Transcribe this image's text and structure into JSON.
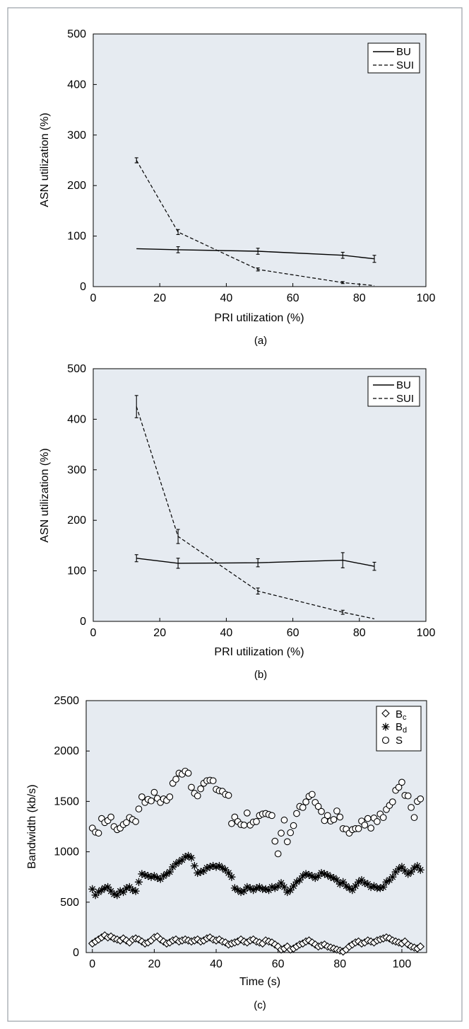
{
  "chart_data": [
    {
      "type": "line",
      "caption": "(a)",
      "xlabel": "PRI utilization (%)",
      "ylabel": "ASN utilization (%)",
      "xlim": [
        0,
        100
      ],
      "ylim": [
        0,
        500
      ],
      "xticks": [
        0,
        20,
        40,
        60,
        80,
        100
      ],
      "yticks": [
        0,
        100,
        200,
        300,
        400,
        500
      ],
      "grid": false,
      "legend": "top-right",
      "series": [
        {
          "name": "BU",
          "style": "solid",
          "x": [
            13,
            25.5,
            49.5,
            75,
            84.5
          ],
          "y": [
            75,
            73,
            70,
            62,
            55
          ],
          "err": [
            null,
            6,
            6,
            6,
            7
          ]
        },
        {
          "name": "SUI",
          "style": "dashed",
          "x": [
            13,
            25.5,
            49.5,
            75,
            84.5
          ],
          "y": [
            250,
            108,
            34,
            8,
            2
          ],
          "err": [
            5,
            5,
            3,
            2,
            null
          ]
        }
      ]
    },
    {
      "type": "line",
      "caption": "(b)",
      "xlabel": "PRI utilization (%)",
      "ylabel": "ASN utilization (%)",
      "xlim": [
        0,
        100
      ],
      "ylim": [
        0,
        500
      ],
      "xticks": [
        0,
        20,
        40,
        60,
        80,
        100
      ],
      "yticks": [
        0,
        100,
        200,
        300,
        400,
        500
      ],
      "grid": false,
      "legend": "top-right",
      "series": [
        {
          "name": "BU",
          "style": "solid",
          "x": [
            13,
            25.5,
            49.5,
            75,
            84.5
          ],
          "y": [
            125,
            115,
            116,
            121,
            109
          ],
          "err": [
            7,
            10,
            8,
            15,
            8
          ]
        },
        {
          "name": "SUI",
          "style": "dashed",
          "x": [
            13,
            25.5,
            49.5,
            75,
            84.5
          ],
          "y": [
            425,
            168,
            60,
            18,
            5
          ],
          "err": [
            22,
            14,
            6,
            4,
            null
          ]
        }
      ]
    },
    {
      "type": "scatter",
      "caption": "(c)",
      "xlabel": "Time (s)",
      "ylabel": "Bandwidth (kb/s)",
      "xlim": [
        -2,
        108
      ],
      "ylim": [
        0,
        2500
      ],
      "xticks": [
        0,
        20,
        40,
        60,
        80,
        100
      ],
      "yticks": [
        0,
        500,
        1000,
        1500,
        2000,
        2500
      ],
      "grid": false,
      "legend": "top-right",
      "series": [
        {
          "name": "S",
          "legend_label": "S",
          "marker": "circle",
          "x": [
            0,
            1,
            2,
            3,
            4,
            5,
            6,
            7,
            8,
            9,
            10,
            11,
            12,
            13,
            14,
            15,
            16,
            17,
            18,
            19,
            20,
            21,
            22,
            23,
            24,
            25,
            26,
            27,
            28,
            29,
            30,
            31,
            32,
            33,
            34,
            35,
            36,
            37,
            38,
            39,
            40,
            41,
            42,
            43,
            44,
            45,
            46,
            47,
            48,
            49,
            50,
            51,
            52,
            53,
            54,
            55,
            56,
            57,
            58,
            59,
            60,
            61,
            62,
            63,
            64,
            65,
            66,
            67,
            68,
            69,
            70,
            71,
            72,
            73,
            74,
            75,
            76,
            77,
            78,
            79,
            80,
            81,
            82,
            83,
            84,
            85,
            86,
            87,
            88,
            89,
            90,
            91,
            92,
            93,
            94,
            95,
            96,
            97,
            98,
            99,
            100,
            101,
            102,
            103,
            104,
            105,
            106
          ],
          "y": [
            1235,
            1195,
            1185,
            1330,
            1290,
            1310,
            1345,
            1250,
            1220,
            1235,
            1270,
            1290,
            1340,
            1320,
            1300,
            1425,
            1545,
            1490,
            1520,
            1505,
            1590,
            1530,
            1490,
            1525,
            1510,
            1545,
            1680,
            1720,
            1780,
            1770,
            1800,
            1780,
            1640,
            1580,
            1555,
            1625,
            1680,
            1705,
            1710,
            1705,
            1620,
            1605,
            1600,
            1570,
            1560,
            1280,
            1345,
            1300,
            1270,
            1265,
            1385,
            1265,
            1295,
            1300,
            1360,
            1375,
            1380,
            1370,
            1360,
            1105,
            980,
            1185,
            1315,
            1100,
            1190,
            1260,
            1380,
            1450,
            1440,
            1495,
            1550,
            1570,
            1490,
            1450,
            1400,
            1310,
            1360,
            1305,
            1320,
            1405,
            1345,
            1230,
            1225,
            1185,
            1220,
            1230,
            1230,
            1305,
            1265,
            1330,
            1235,
            1335,
            1300,
            1375,
            1340,
            1420,
            1460,
            1495,
            1610,
            1640,
            1690,
            1560,
            1555,
            1440,
            1340,
            1500,
            1525
          ]
        },
        {
          "name": "Bd",
          "legend_label": "B",
          "legend_sub": "d",
          "marker": "star",
          "x": [
            0,
            1,
            2,
            3,
            4,
            5,
            6,
            7,
            8,
            9,
            10,
            11,
            12,
            13,
            14,
            15,
            16,
            17,
            18,
            19,
            20,
            21,
            22,
            23,
            24,
            25,
            26,
            27,
            28,
            29,
            30,
            31,
            32,
            33,
            34,
            35,
            36,
            37,
            38,
            39,
            40,
            41,
            42,
            43,
            44,
            45,
            46,
            47,
            48,
            49,
            50,
            51,
            52,
            53,
            54,
            55,
            56,
            57,
            58,
            59,
            60,
            61,
            62,
            63,
            64,
            65,
            66,
            67,
            68,
            69,
            70,
            71,
            72,
            73,
            74,
            75,
            76,
            77,
            78,
            79,
            80,
            81,
            82,
            83,
            84,
            85,
            86,
            87,
            88,
            89,
            90,
            91,
            92,
            93,
            94,
            95,
            96,
            97,
            98,
            99,
            100,
            101,
            102,
            103,
            104,
            105,
            106
          ],
          "y": [
            630,
            570,
            600,
            620,
            640,
            650,
            610,
            580,
            570,
            610,
            600,
            640,
            650,
            620,
            610,
            700,
            780,
            770,
            760,
            750,
            760,
            740,
            730,
            760,
            780,
            800,
            850,
            880,
            900,
            920,
            950,
            960,
            940,
            860,
            790,
            800,
            810,
            840,
            850,
            860,
            850,
            860,
            840,
            820,
            790,
            750,
            640,
            620,
            600,
            610,
            650,
            640,
            620,
            640,
            650,
            630,
            630,
            620,
            650,
            640,
            660,
            690,
            650,
            600,
            620,
            660,
            700,
            720,
            760,
            780,
            770,
            760,
            740,
            760,
            790,
            780,
            770,
            750,
            740,
            720,
            680,
            700,
            660,
            640,
            620,
            660,
            700,
            720,
            690,
            680,
            650,
            660,
            640,
            640,
            650,
            700,
            720,
            750,
            800,
            830,
            850,
            810,
            780,
            800,
            840,
            860,
            820
          ]
        },
        {
          "name": "Bc",
          "legend_label": "B",
          "legend_sub": "c",
          "marker": "diamond",
          "x": [
            0,
            1,
            2,
            3,
            4,
            5,
            6,
            7,
            8,
            9,
            10,
            11,
            12,
            13,
            14,
            15,
            16,
            17,
            18,
            19,
            20,
            21,
            22,
            23,
            24,
            25,
            26,
            27,
            28,
            29,
            30,
            31,
            32,
            33,
            34,
            35,
            36,
            37,
            38,
            39,
            40,
            41,
            42,
            43,
            44,
            45,
            46,
            47,
            48,
            49,
            50,
            51,
            52,
            53,
            54,
            55,
            56,
            57,
            58,
            59,
            60,
            61,
            62,
            63,
            64,
            65,
            66,
            67,
            68,
            69,
            70,
            71,
            72,
            73,
            74,
            75,
            76,
            77,
            78,
            79,
            80,
            81,
            82,
            83,
            84,
            85,
            86,
            87,
            88,
            89,
            90,
            91,
            92,
            93,
            94,
            95,
            96,
            97,
            98,
            99,
            100,
            101,
            102,
            103,
            104,
            105,
            106
          ],
          "y": [
            90,
            110,
            130,
            150,
            170,
            150,
            160,
            140,
            130,
            120,
            140,
            120,
            100,
            130,
            140,
            130,
            110,
            90,
            100,
            120,
            150,
            160,
            130,
            110,
            90,
            100,
            120,
            130,
            110,
            120,
            130,
            120,
            110,
            120,
            130,
            110,
            120,
            140,
            150,
            130,
            120,
            130,
            110,
            100,
            80,
            90,
            100,
            110,
            130,
            110,
            100,
            120,
            130,
            110,
            100,
            90,
            120,
            110,
            100,
            80,
            60,
            30,
            40,
            60,
            30,
            40,
            60,
            80,
            90,
            110,
            120,
            100,
            80,
            60,
            70,
            80,
            60,
            50,
            40,
            30,
            20,
            10,
            30,
            60,
            80,
            100,
            110,
            90,
            100,
            120,
            110,
            100,
            120,
            130,
            140,
            150,
            140,
            120,
            110,
            100,
            90,
            110,
            80,
            60,
            50,
            40,
            60
          ]
        }
      ]
    }
  ]
}
